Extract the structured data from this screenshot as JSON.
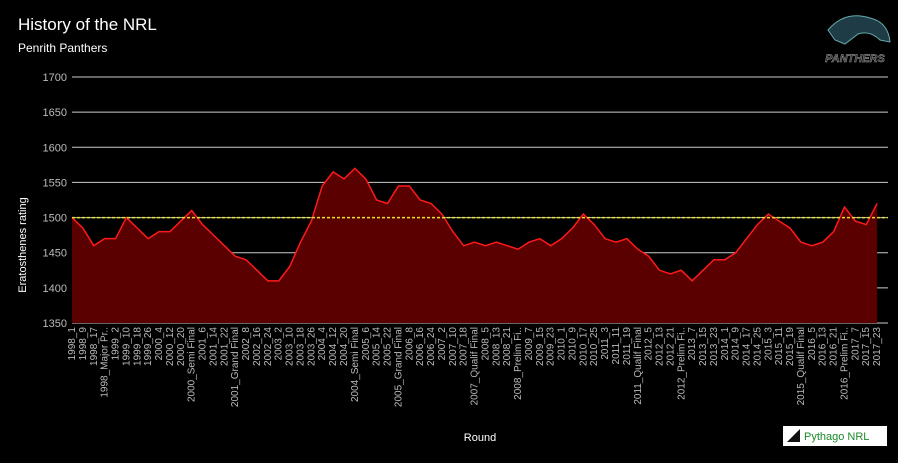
{
  "chart_data": {
    "type": "area",
    "title": "History of the NRL",
    "subtitle": "Penrith Panthers",
    "x_label": "Round",
    "y_label": "Eratosthenes rating",
    "logo_text": "PANTHERS",
    "brand": "Pythago NRL",
    "categories": [
      "1998_1",
      "1998_9",
      "1998_17",
      "1998_Major Pr..",
      "1999_2",
      "1999_10",
      "1999_18",
      "1999_26",
      "2000_4",
      "2000_12",
      "2000_20",
      "2000_Semi Final",
      "2001_6",
      "2001_14",
      "2001_22",
      "2001_Grand Final",
      "2002_8",
      "2002_16",
      "2002_24",
      "2003_2",
      "2003_10",
      "2003_18",
      "2003_26",
      "2004_4",
      "2004_12",
      "2004_20",
      "2004_Semi Final",
      "2005_6",
      "2005_14",
      "2005_22",
      "2005_Grand Final",
      "2006_8",
      "2006_16",
      "2006_24",
      "2007_2",
      "2007_10",
      "2007_18",
      "2007_Qualif Final",
      "2008_5",
      "2008_13",
      "2008_21",
      "2008_Prelim Fi..",
      "2009_7",
      "2009_15",
      "2009_23",
      "2010_1",
      "2010_9",
      "2010_17",
      "2010_25",
      "2011_3",
      "2011_11",
      "2011_19",
      "2011_Qualif Final",
      "2012_5",
      "2012_13",
      "2012_21",
      "2012_Prelim Fi..",
      "2013_7",
      "2013_15",
      "2013_23",
      "2014_1",
      "2014_9",
      "2014_17",
      "2014_25",
      "2015_3",
      "2015_11",
      "2015_19",
      "2015_Qualif Final",
      "2016_5",
      "2016_13",
      "2016_21",
      "2016_Prelim Fi..",
      "2017_7",
      "2017_15",
      "2017_23"
    ],
    "values": [
      1500,
      1485,
      1460,
      1470,
      1470,
      1500,
      1485,
      1470,
      1480,
      1480,
      1495,
      1510,
      1490,
      1475,
      1460,
      1445,
      1440,
      1425,
      1410,
      1410,
      1430,
      1465,
      1495,
      1545,
      1565,
      1555,
      1570,
      1555,
      1525,
      1520,
      1545,
      1545,
      1525,
      1520,
      1505,
      1480,
      1460,
      1465,
      1460,
      1465,
      1460,
      1455,
      1465,
      1470,
      1460,
      1470,
      1485,
      1505,
      1490,
      1470,
      1465,
      1470,
      1455,
      1445,
      1425,
      1420,
      1425,
      1410,
      1425,
      1440,
      1440,
      1450,
      1470,
      1490,
      1505,
      1495,
      1485,
      1465,
      1460,
      1465,
      1480,
      1515,
      1495,
      1490,
      1520
    ],
    "color": "#ff1a1a",
    "fill": "#5a0000",
    "reference_line": 1500,
    "reference_color": "#e6e62e",
    "ylim": [
      1350,
      1700
    ],
    "yticks": [
      1350,
      1400,
      1450,
      1500,
      1550,
      1600,
      1650,
      1700
    ],
    "grid": true
  }
}
